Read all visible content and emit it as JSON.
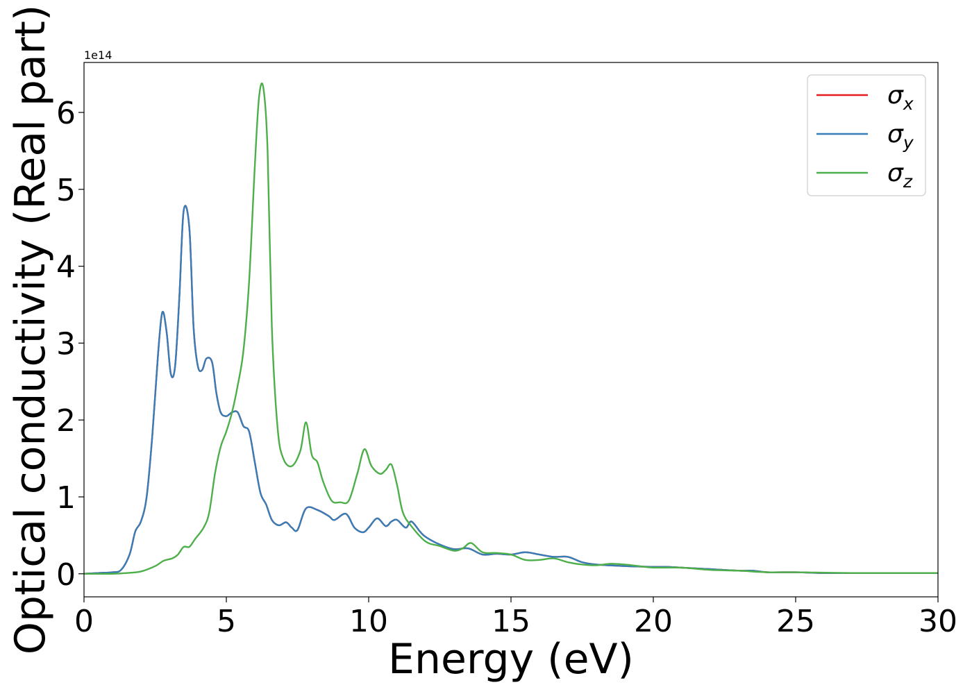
{
  "chart_data": {
    "type": "line",
    "xlabel": "Energy (eV)",
    "ylabel": "Optical conductivity (Real part)",
    "y_offset_label": "1e14",
    "y_scale_exponent": 14,
    "xlim": [
      0,
      30
    ],
    "ylim": [
      -0.3,
      6.65
    ],
    "x_ticks": [
      0,
      5,
      10,
      15,
      20,
      25,
      30
    ],
    "x_tick_labels": [
      "0",
      "5",
      "10",
      "15",
      "20",
      "25",
      "30"
    ],
    "y_ticks": [
      0,
      1,
      2,
      3,
      4,
      5,
      6
    ],
    "y_tick_labels": [
      "0",
      "1",
      "2",
      "3",
      "4",
      "5",
      "6"
    ],
    "grid": false,
    "legend_position": "top-right",
    "series": [
      {
        "name": "σx",
        "legend_base": "σ",
        "legend_sub": "x",
        "color": "#e41a1c",
        "x": [
          0,
          0.5,
          1.0,
          1.3,
          1.6,
          1.8,
          2.0,
          2.2,
          2.4,
          2.6,
          2.75,
          2.9,
          3.05,
          3.2,
          3.35,
          3.5,
          3.7,
          3.85,
          4.0,
          4.15,
          4.3,
          4.5,
          4.65,
          4.8,
          5.0,
          5.2,
          5.4,
          5.6,
          5.8,
          6.0,
          6.2,
          6.4,
          6.6,
          6.85,
          7.1,
          7.3,
          7.5,
          7.8,
          8.2,
          8.6,
          8.8,
          9.2,
          9.5,
          9.8,
          10.0,
          10.3,
          10.6,
          10.8,
          11.0,
          11.3,
          11.5,
          11.8,
          12.0,
          12.5,
          13.0,
          13.5,
          14.0,
          14.5,
          15.0,
          15.5,
          16.0,
          16.5,
          17.0,
          17.5,
          18.0,
          19.0,
          20.0,
          20.5,
          21.0,
          22.0,
          23.0,
          23.5,
          24.0,
          25.0,
          26.0,
          28.0,
          30.0
        ],
        "y": [
          0,
          0.01,
          0.02,
          0.05,
          0.25,
          0.55,
          0.68,
          1.0,
          1.8,
          2.85,
          3.4,
          3.15,
          2.6,
          2.7,
          3.6,
          4.72,
          4.5,
          3.2,
          2.7,
          2.65,
          2.8,
          2.75,
          2.35,
          2.1,
          2.05,
          2.1,
          2.1,
          1.92,
          1.85,
          1.45,
          1.05,
          0.9,
          0.7,
          0.63,
          0.67,
          0.6,
          0.57,
          0.85,
          0.83,
          0.75,
          0.7,
          0.78,
          0.6,
          0.54,
          0.6,
          0.72,
          0.62,
          0.68,
          0.7,
          0.6,
          0.68,
          0.55,
          0.48,
          0.38,
          0.32,
          0.33,
          0.25,
          0.26,
          0.25,
          0.28,
          0.25,
          0.22,
          0.22,
          0.15,
          0.12,
          0.1,
          0.09,
          0.09,
          0.08,
          0.06,
          0.04,
          0.04,
          0.02,
          0.02,
          0.01,
          0.01,
          0.01
        ]
      },
      {
        "name": "σy",
        "legend_base": "σ",
        "legend_sub": "y",
        "color": "#377eb8",
        "x": [
          0,
          0.5,
          1.0,
          1.3,
          1.6,
          1.8,
          2.0,
          2.2,
          2.4,
          2.6,
          2.75,
          2.9,
          3.05,
          3.2,
          3.35,
          3.5,
          3.7,
          3.85,
          4.0,
          4.15,
          4.3,
          4.5,
          4.65,
          4.8,
          5.0,
          5.2,
          5.4,
          5.6,
          5.8,
          6.0,
          6.2,
          6.4,
          6.6,
          6.85,
          7.1,
          7.3,
          7.5,
          7.8,
          8.2,
          8.6,
          8.8,
          9.2,
          9.5,
          9.8,
          10.0,
          10.3,
          10.6,
          10.8,
          11.0,
          11.3,
          11.5,
          11.8,
          12.0,
          12.5,
          13.0,
          13.5,
          14.0,
          14.5,
          15.0,
          15.5,
          16.0,
          16.5,
          17.0,
          17.5,
          18.0,
          19.0,
          20.0,
          20.5,
          21.0,
          22.0,
          23.0,
          23.5,
          24.0,
          25.0,
          26.0,
          28.0,
          30.0
        ],
        "y": [
          0,
          0.01,
          0.02,
          0.05,
          0.25,
          0.55,
          0.68,
          1.0,
          1.8,
          2.85,
          3.4,
          3.15,
          2.6,
          2.7,
          3.6,
          4.72,
          4.5,
          3.2,
          2.7,
          2.65,
          2.8,
          2.75,
          2.35,
          2.1,
          2.05,
          2.1,
          2.1,
          1.92,
          1.85,
          1.45,
          1.05,
          0.9,
          0.7,
          0.63,
          0.67,
          0.6,
          0.57,
          0.85,
          0.83,
          0.75,
          0.7,
          0.78,
          0.6,
          0.54,
          0.6,
          0.72,
          0.62,
          0.68,
          0.7,
          0.6,
          0.68,
          0.55,
          0.48,
          0.38,
          0.32,
          0.33,
          0.25,
          0.26,
          0.25,
          0.28,
          0.25,
          0.22,
          0.22,
          0.15,
          0.12,
          0.1,
          0.09,
          0.09,
          0.08,
          0.06,
          0.04,
          0.04,
          0.02,
          0.02,
          0.01,
          0.01,
          0.01
        ]
      },
      {
        "name": "σz",
        "legend_base": "σ",
        "legend_sub": "z",
        "color": "#4daf4a",
        "x": [
          0,
          1.0,
          1.5,
          2.0,
          2.5,
          2.8,
          3.1,
          3.3,
          3.5,
          3.7,
          3.9,
          4.2,
          4.4,
          4.6,
          4.8,
          5.0,
          5.2,
          5.4,
          5.6,
          5.8,
          6.0,
          6.15,
          6.3,
          6.45,
          6.6,
          6.8,
          7.0,
          7.3,
          7.6,
          7.8,
          8.0,
          8.2,
          8.4,
          8.7,
          9.0,
          9.3,
          9.6,
          9.85,
          10.1,
          10.4,
          10.6,
          10.8,
          11.0,
          11.2,
          11.5,
          12.0,
          12.5,
          13.0,
          13.3,
          13.6,
          14.0,
          14.5,
          15.0,
          15.5,
          16.0,
          16.5,
          17.0,
          17.5,
          18.0,
          18.5,
          19.0,
          19.5,
          20.0,
          21.0,
          22.0,
          23.0,
          24.0,
          25.0,
          27.0,
          30.0
        ],
        "y": [
          0,
          0.0,
          0.01,
          0.03,
          0.1,
          0.17,
          0.2,
          0.25,
          0.35,
          0.35,
          0.45,
          0.6,
          0.8,
          1.3,
          1.65,
          1.85,
          2.1,
          2.45,
          2.9,
          3.8,
          5.3,
          6.2,
          6.32,
          5.5,
          3.2,
          1.9,
          1.5,
          1.4,
          1.6,
          1.97,
          1.55,
          1.45,
          1.2,
          0.95,
          0.93,
          0.95,
          1.3,
          1.62,
          1.4,
          1.3,
          1.35,
          1.42,
          1.15,
          0.8,
          0.62,
          0.42,
          0.36,
          0.3,
          0.33,
          0.4,
          0.28,
          0.27,
          0.25,
          0.18,
          0.18,
          0.2,
          0.15,
          0.12,
          0.11,
          0.13,
          0.12,
          0.1,
          0.08,
          0.08,
          0.05,
          0.04,
          0.02,
          0.02,
          0.01,
          0.01
        ]
      }
    ]
  }
}
